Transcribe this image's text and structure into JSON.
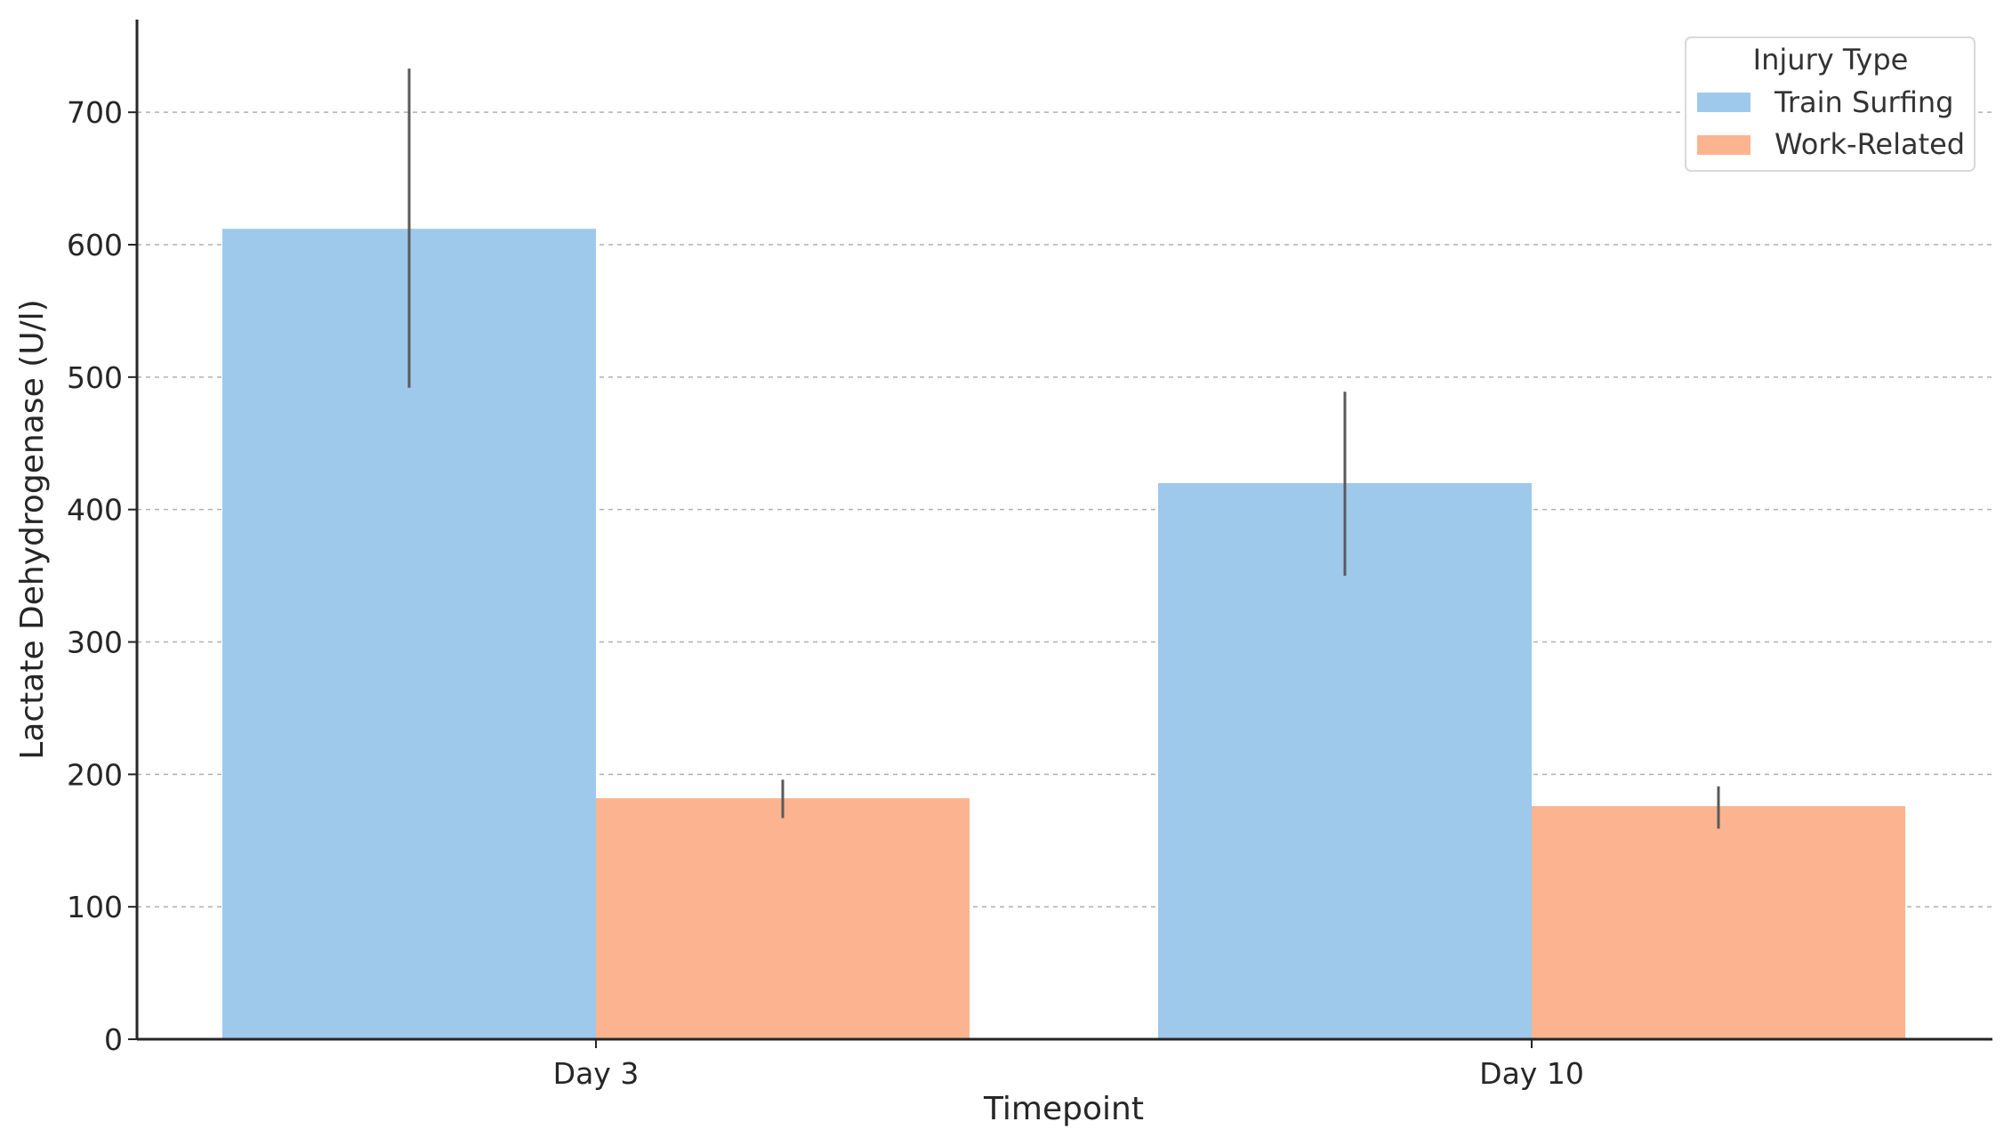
{
  "chart_data": {
    "type": "bar",
    "title": "",
    "xlabel": "Timepoint",
    "ylabel": "Lactate Dehydrogenase (U/l)",
    "categories": [
      "Day 3",
      "Day 10"
    ],
    "ylim": [
      0,
      770
    ],
    "yticks": [
      0,
      100,
      200,
      300,
      400,
      500,
      600,
      700
    ],
    "grid": true,
    "legend": {
      "title": "Injury Type",
      "placement": "top-right"
    },
    "series": [
      {
        "name": "Train Surfing",
        "color": "#9FC9EB",
        "values": [
          612,
          420
        ],
        "error_low": [
          492,
          350
        ],
        "error_high": [
          733,
          489
        ]
      },
      {
        "name": "Work-Related",
        "color": "#FBB48F",
        "values": [
          182,
          176
        ],
        "error_low": [
          167,
          159
        ],
        "error_high": [
          196,
          191
        ]
      }
    ]
  }
}
